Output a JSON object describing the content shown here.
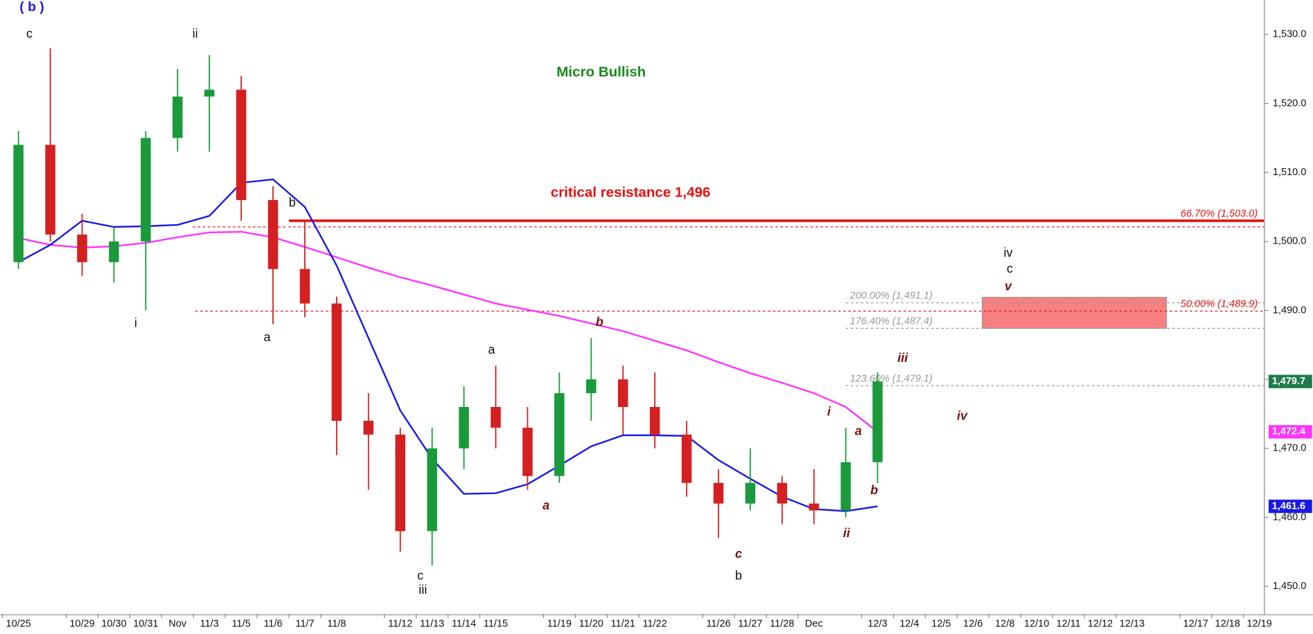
{
  "chart_data": {
    "type": "candlestick",
    "categories": [
      "10/25",
      null,
      "10/29",
      "10/30",
      "10/31",
      "Nov",
      "11/3",
      "11/5",
      "11/6",
      "11/7",
      "11/8",
      null,
      "11/12",
      "11/13",
      "11/14",
      "11/15",
      null,
      "11/19",
      "11/20",
      "11/21",
      "11/22",
      null,
      "11/26",
      "11/27",
      "11/28",
      "Dec",
      null,
      "12/3",
      "12/4",
      "12/5",
      "12/6",
      "12/8",
      "12/10",
      "12/11",
      "12/12",
      "12/13",
      null,
      "12/17",
      "12/18",
      "12/19"
    ],
    "open": [
      1497,
      1514,
      1501,
      1497,
      1500,
      1515,
      1521,
      1522,
      1506,
      1496,
      1491,
      1474,
      1472,
      1458,
      1470,
      1476,
      1473,
      1466,
      1478,
      1480,
      1476,
      1472,
      1465,
      1462,
      1465,
      1462,
      1461,
      1468,
      null,
      null,
      null,
      null,
      null,
      null,
      null,
      null,
      null,
      null,
      null,
      null
    ],
    "high": [
      1516,
      1528,
      1504,
      1502,
      1516,
      1525,
      1527,
      1524,
      1508,
      1503,
      1492,
      1478,
      1473,
      1473,
      1479,
      1482,
      1476,
      1481,
      1486,
      1482,
      1481,
      1474,
      1467,
      1470,
      1466,
      1467,
      1473,
      1481,
      null,
      null,
      null,
      null,
      null,
      null,
      null,
      null,
      null,
      null,
      null,
      null
    ],
    "low": [
      1496,
      1500,
      1495,
      1494,
      1490,
      1513,
      1513,
      1503,
      1488,
      1489,
      1469,
      1464,
      1455,
      1453,
      1467,
      1470,
      1464,
      1465,
      1474,
      1472,
      1470,
      1463,
      1457,
      1461,
      1459,
      1459,
      1460,
      1465,
      null,
      null,
      null,
      null,
      null,
      null,
      null,
      null,
      null,
      null,
      null,
      null
    ],
    "close": [
      1514,
      1501,
      1497,
      1500,
      1515,
      1521,
      1522,
      1506,
      1496,
      1491,
      1474,
      1472,
      1458,
      1470,
      1476,
      1473,
      1466,
      1478,
      1480,
      1476,
      1472,
      1465,
      1462,
      1465,
      1462,
      1461,
      1468,
      1479.7,
      null,
      null,
      null,
      null,
      null,
      null,
      null,
      null,
      null,
      null,
      null,
      null
    ],
    "up_color": "#1a9a3a",
    "down_color": "#d42020",
    "moving_averages": [
      {
        "color": "#ff33ff",
        "values": [
          1500.5,
          1499.5,
          1499.1,
          1499.3,
          1499.8,
          1500.6,
          1501.3,
          1501.4,
          1500.6,
          1499.2,
          1497.7,
          1496.2,
          1494.8,
          1493.6,
          1492.3,
          1491,
          1490.1,
          1489.2,
          1488.1,
          1487,
          1485.6,
          1484.2,
          1482.5,
          1480.9,
          1479.5,
          1478,
          1476,
          1472.4,
          null,
          null,
          null,
          null,
          null,
          null,
          null,
          null,
          null,
          null,
          null,
          null
        ]
      },
      {
        "color": "#1a1ae6",
        "values": [
          1497,
          1499.5,
          1503,
          1502.1,
          1502.2,
          1502.4,
          1503.7,
          1508.5,
          1509,
          1505,
          1496.5,
          1486,
          1475.5,
          1468.5,
          1463.4,
          1463.5,
          1464.8,
          1467.5,
          1470.3,
          1471.9,
          1471.9,
          1471.8,
          1468.3,
          1465.6,
          1463,
          1461.2,
          1460.9,
          1461.6,
          null,
          null,
          null,
          null,
          null,
          null,
          null,
          null,
          null,
          null,
          null,
          null
        ]
      }
    ],
    "ylim": [
      1446,
      1535
    ],
    "yticks": [
      {
        "value": 1450,
        "label": "1,450.0"
      },
      {
        "value": 1460,
        "label": "1,460.0"
      },
      {
        "value": 1470,
        "label": "1,470.0"
      },
      {
        "value": 1480,
        "label": "1,480.0"
      },
      {
        "value": 1490,
        "label": "1,490.0"
      },
      {
        "value": 1500,
        "label": "1,500.0"
      },
      {
        "value": 1510,
        "label": "1,510.0"
      },
      {
        "value": 1520,
        "label": "1,520.0"
      },
      {
        "value": 1530,
        "label": "1,530.0"
      }
    ],
    "levels": [
      {
        "value": 1503.0,
        "label": "66.70% (1,503.0)",
        "color": "#e81010",
        "style": "solid"
      },
      {
        "value": 1502.1,
        "color": "#e81010",
        "style": "dotted"
      },
      {
        "value": 1489.9,
        "label": "50.00% (1,489.9)",
        "color": "#e81010",
        "style": "dotted"
      },
      {
        "value": 1491.1,
        "label": "200.00% (1,491.1)",
        "color": "#999999",
        "style": "dotted"
      },
      {
        "value": 1487.4,
        "label": "176.40% (1,487.4)",
        "color": "#999999",
        "style": "dotted"
      },
      {
        "value": 1479.1,
        "label": "123.60% (1,479.1)",
        "color": "#999999",
        "style": "dotted"
      }
    ],
    "target_zone": {
      "high": 1491.9,
      "low": 1487.4,
      "color": "#f88080"
    },
    "price_tags": [
      {
        "value": 1479.7,
        "label": "1,479.7",
        "color": "#1e7b4b"
      },
      {
        "value": 1472.4,
        "label": "1,472.4",
        "color": "#ff33ff"
      },
      {
        "value": 1461.6,
        "label": "1,461.6",
        "color": "#1a1ae6"
      }
    ]
  },
  "annotations": {
    "notes": [
      "Micro Bullish",
      "critical resistance 1,496"
    ],
    "degree_label": "( b )",
    "wave_labels": [
      "c",
      "ii",
      "i",
      "a",
      "b",
      "a",
      "c",
      "iii",
      "b",
      "iv",
      "c"
    ],
    "minor_wave_labels": [
      "v",
      "b",
      "a",
      "c",
      "i",
      "ii",
      "a",
      "b",
      "iii",
      "iv"
    ]
  }
}
